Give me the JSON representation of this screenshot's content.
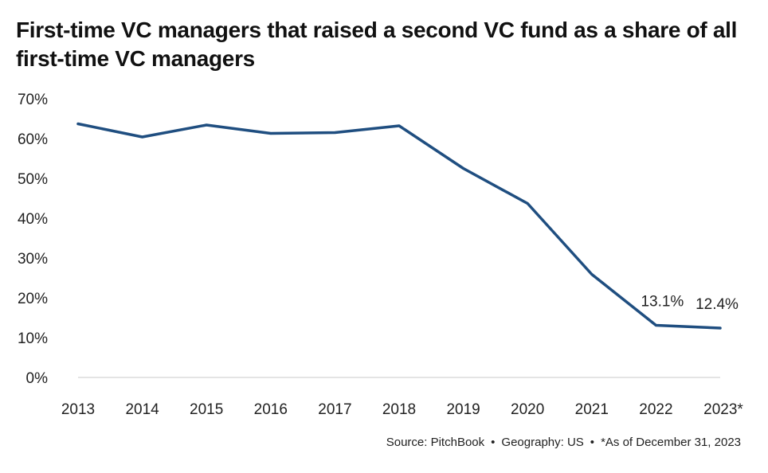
{
  "chart_data": {
    "type": "line",
    "title": "First-time VC managers that raised a second VC fund as a share of all first-time VC managers",
    "categories": [
      "2013",
      "2014",
      "2015",
      "2016",
      "2017",
      "2018",
      "2019",
      "2020",
      "2021",
      "2022",
      "2023*"
    ],
    "series": [
      {
        "values": [
          63.7,
          60.4,
          63.4,
          61.3,
          61.5,
          63.2,
          52.5,
          43.7,
          25.9,
          13.1,
          12.4
        ],
        "color": "#1f4e80"
      }
    ],
    "data_labels": [
      {
        "index": 9,
        "text": "13.1%"
      },
      {
        "index": 10,
        "text": "12.4%"
      }
    ],
    "y_ticks": [
      "0%",
      "10%",
      "20%",
      "30%",
      "40%",
      "50%",
      "60%",
      "70%"
    ],
    "ylim": [
      0,
      70
    ],
    "grid": false,
    "legend": "none"
  },
  "footer": {
    "source": "Source: PitchBook",
    "geography": "Geography: US",
    "note": "*As of December 31, 2023",
    "separator": "•"
  }
}
